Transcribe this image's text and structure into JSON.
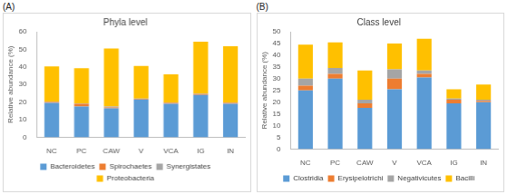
{
  "chart_data": [
    {
      "type": "bar",
      "annotation": "(A)",
      "title": "Phyla level",
      "y_label": "Relative abundance (%)",
      "categories": [
        "NC",
        "PC",
        "CAW",
        "V",
        "VCA",
        "IG",
        "IN"
      ],
      "series": [
        {
          "name": "Bacteroidetes",
          "color": "#5b9bd5",
          "values": [
            19.5,
            17.5,
            16.5,
            21.5,
            19,
            24,
            19
          ]
        },
        {
          "name": "Spirochaetes",
          "color": "#ed7d31",
          "values": [
            0.5,
            1.5,
            0.5,
            0.3,
            0.5,
            0.5,
            0.5
          ]
        },
        {
          "name": "Synergistates",
          "color": "#a5a5a5",
          "values": [
            0.3,
            0.3,
            0.5,
            0.2,
            0.3,
            0.3,
            0.3
          ]
        },
        {
          "name": "Proteobacteria",
          "color": "#ffc000",
          "values": [
            20,
            20,
            33,
            18.5,
            16,
            29.5,
            32
          ]
        }
      ],
      "ylim": [
        0,
        60
      ],
      "yticks": [
        0,
        10,
        20,
        30,
        40,
        50,
        60
      ],
      "stacked": true,
      "grid": false,
      "legend": "bottom"
    },
    {
      "type": "bar",
      "annotation": "(B)",
      "title": "Class level",
      "y_label": "Relative abundance (%)",
      "categories": [
        "NC",
        "PC",
        "CAW",
        "V",
        "VCA",
        "IG",
        "IN"
      ],
      "series": [
        {
          "name": "Clostridia",
          "color": "#5b9bd5",
          "values": [
            25,
            30,
            17.5,
            25.5,
            30.5,
            19.5,
            20
          ]
        },
        {
          "name": "Erysipelotrichi",
          "color": "#ed7d31",
          "values": [
            2,
            2,
            2,
            4.5,
            1.5,
            1.5,
            0.5
          ]
        },
        {
          "name": "Negativicutes",
          "color": "#a5a5a5",
          "values": [
            3,
            2.5,
            1.5,
            4,
            1.5,
            0.5,
            0.5
          ]
        },
        {
          "name": "Bacilli",
          "color": "#ffc000",
          "values": [
            14.5,
            11,
            12.5,
            11,
            13.5,
            4,
            6.5
          ]
        }
      ],
      "ylim": [
        0,
        50
      ],
      "yticks": [
        0,
        5,
        10,
        15,
        20,
        25,
        30,
        35,
        40,
        45,
        50
      ],
      "stacked": true,
      "grid": false,
      "legend": "bottom"
    }
  ]
}
